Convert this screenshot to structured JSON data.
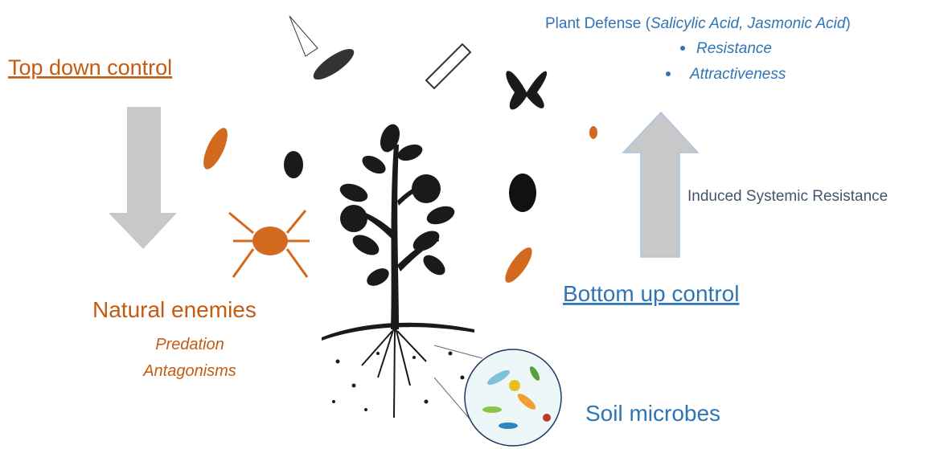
{
  "top_down": {
    "title": "Top down control",
    "natural_enemies": "Natural enemies",
    "mechanisms": [
      "Predation",
      "Antagonisms"
    ]
  },
  "plant_defense": {
    "prefix": "Plant Defense (",
    "hormones": "Salicylic Acid, Jasmonic Acid",
    "suffix": ")",
    "items": [
      "Resistance",
      "Attractiveness"
    ]
  },
  "induced": "Induced Systemic Resistance",
  "bottom_up": {
    "title": "Bottom up control"
  },
  "soil": "Soil microbes"
}
